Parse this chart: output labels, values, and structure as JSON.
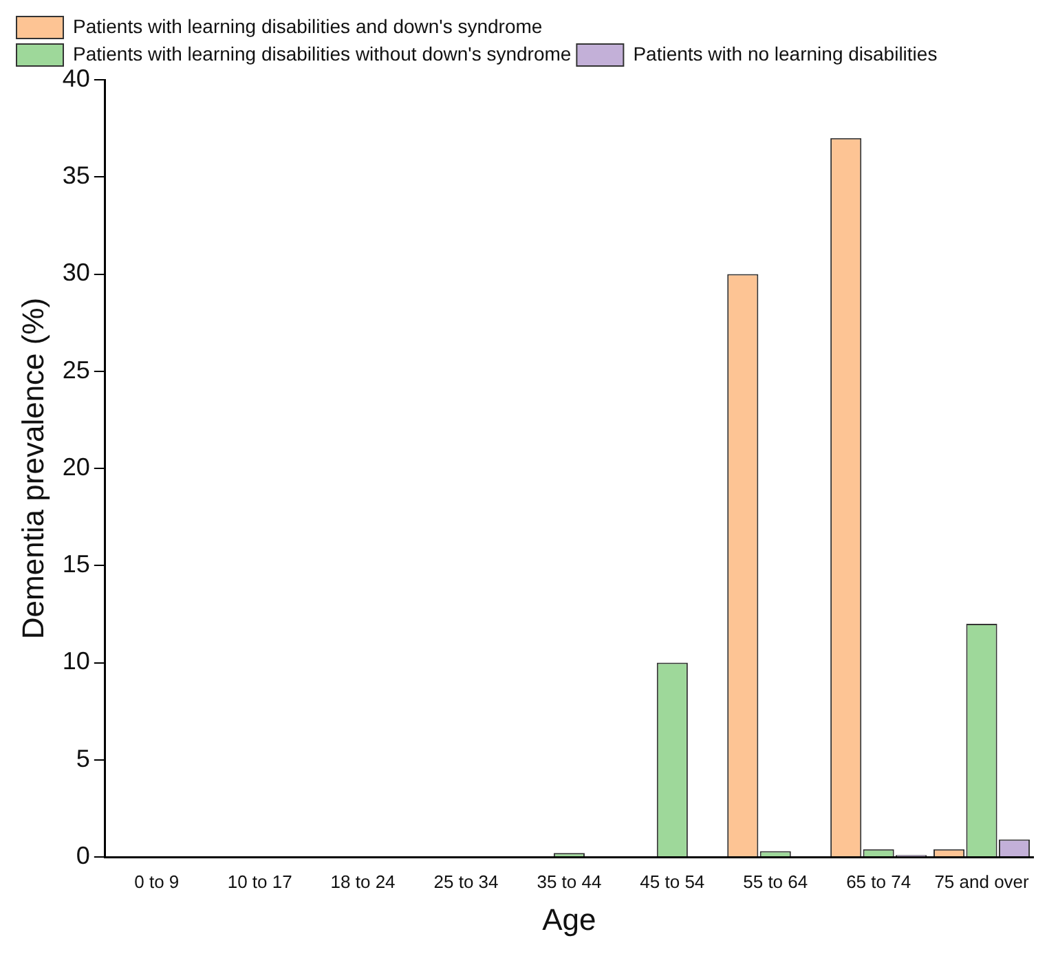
{
  "chart_data": {
    "type": "bar",
    "xlabel": "Age",
    "ylabel": "Dementia prevalence (%)",
    "categories": [
      "0 to 9",
      "10 to 17",
      "18 to 24",
      "25 to 34",
      "35 to 44",
      "45 to 54",
      "55 to 64",
      "65 to 74",
      "75 and over"
    ],
    "series": [
      {
        "name": "Patients with learning disabilities and down's syndrome",
        "color": "#fdc494",
        "values": [
          0,
          0,
          0,
          0,
          0,
          0,
          30,
          37,
          0.4
        ]
      },
      {
        "name": "Patients with learning disabilities without down's syndrome",
        "color": "#9ed89a",
        "values": [
          0,
          0,
          0,
          0,
          0.2,
          10,
          0.3,
          0.4,
          12
        ]
      },
      {
        "name": "Patients with no learning disabilities",
        "color": "#c3b0d8",
        "values": [
          0,
          0,
          0,
          0,
          0,
          0,
          0,
          0.1,
          0.9
        ]
      }
    ],
    "ylim": [
      0,
      40
    ],
    "yticks": [
      0,
      5,
      10,
      15,
      20,
      25,
      30,
      35,
      40
    ],
    "grid": false,
    "legend": "top left"
  }
}
